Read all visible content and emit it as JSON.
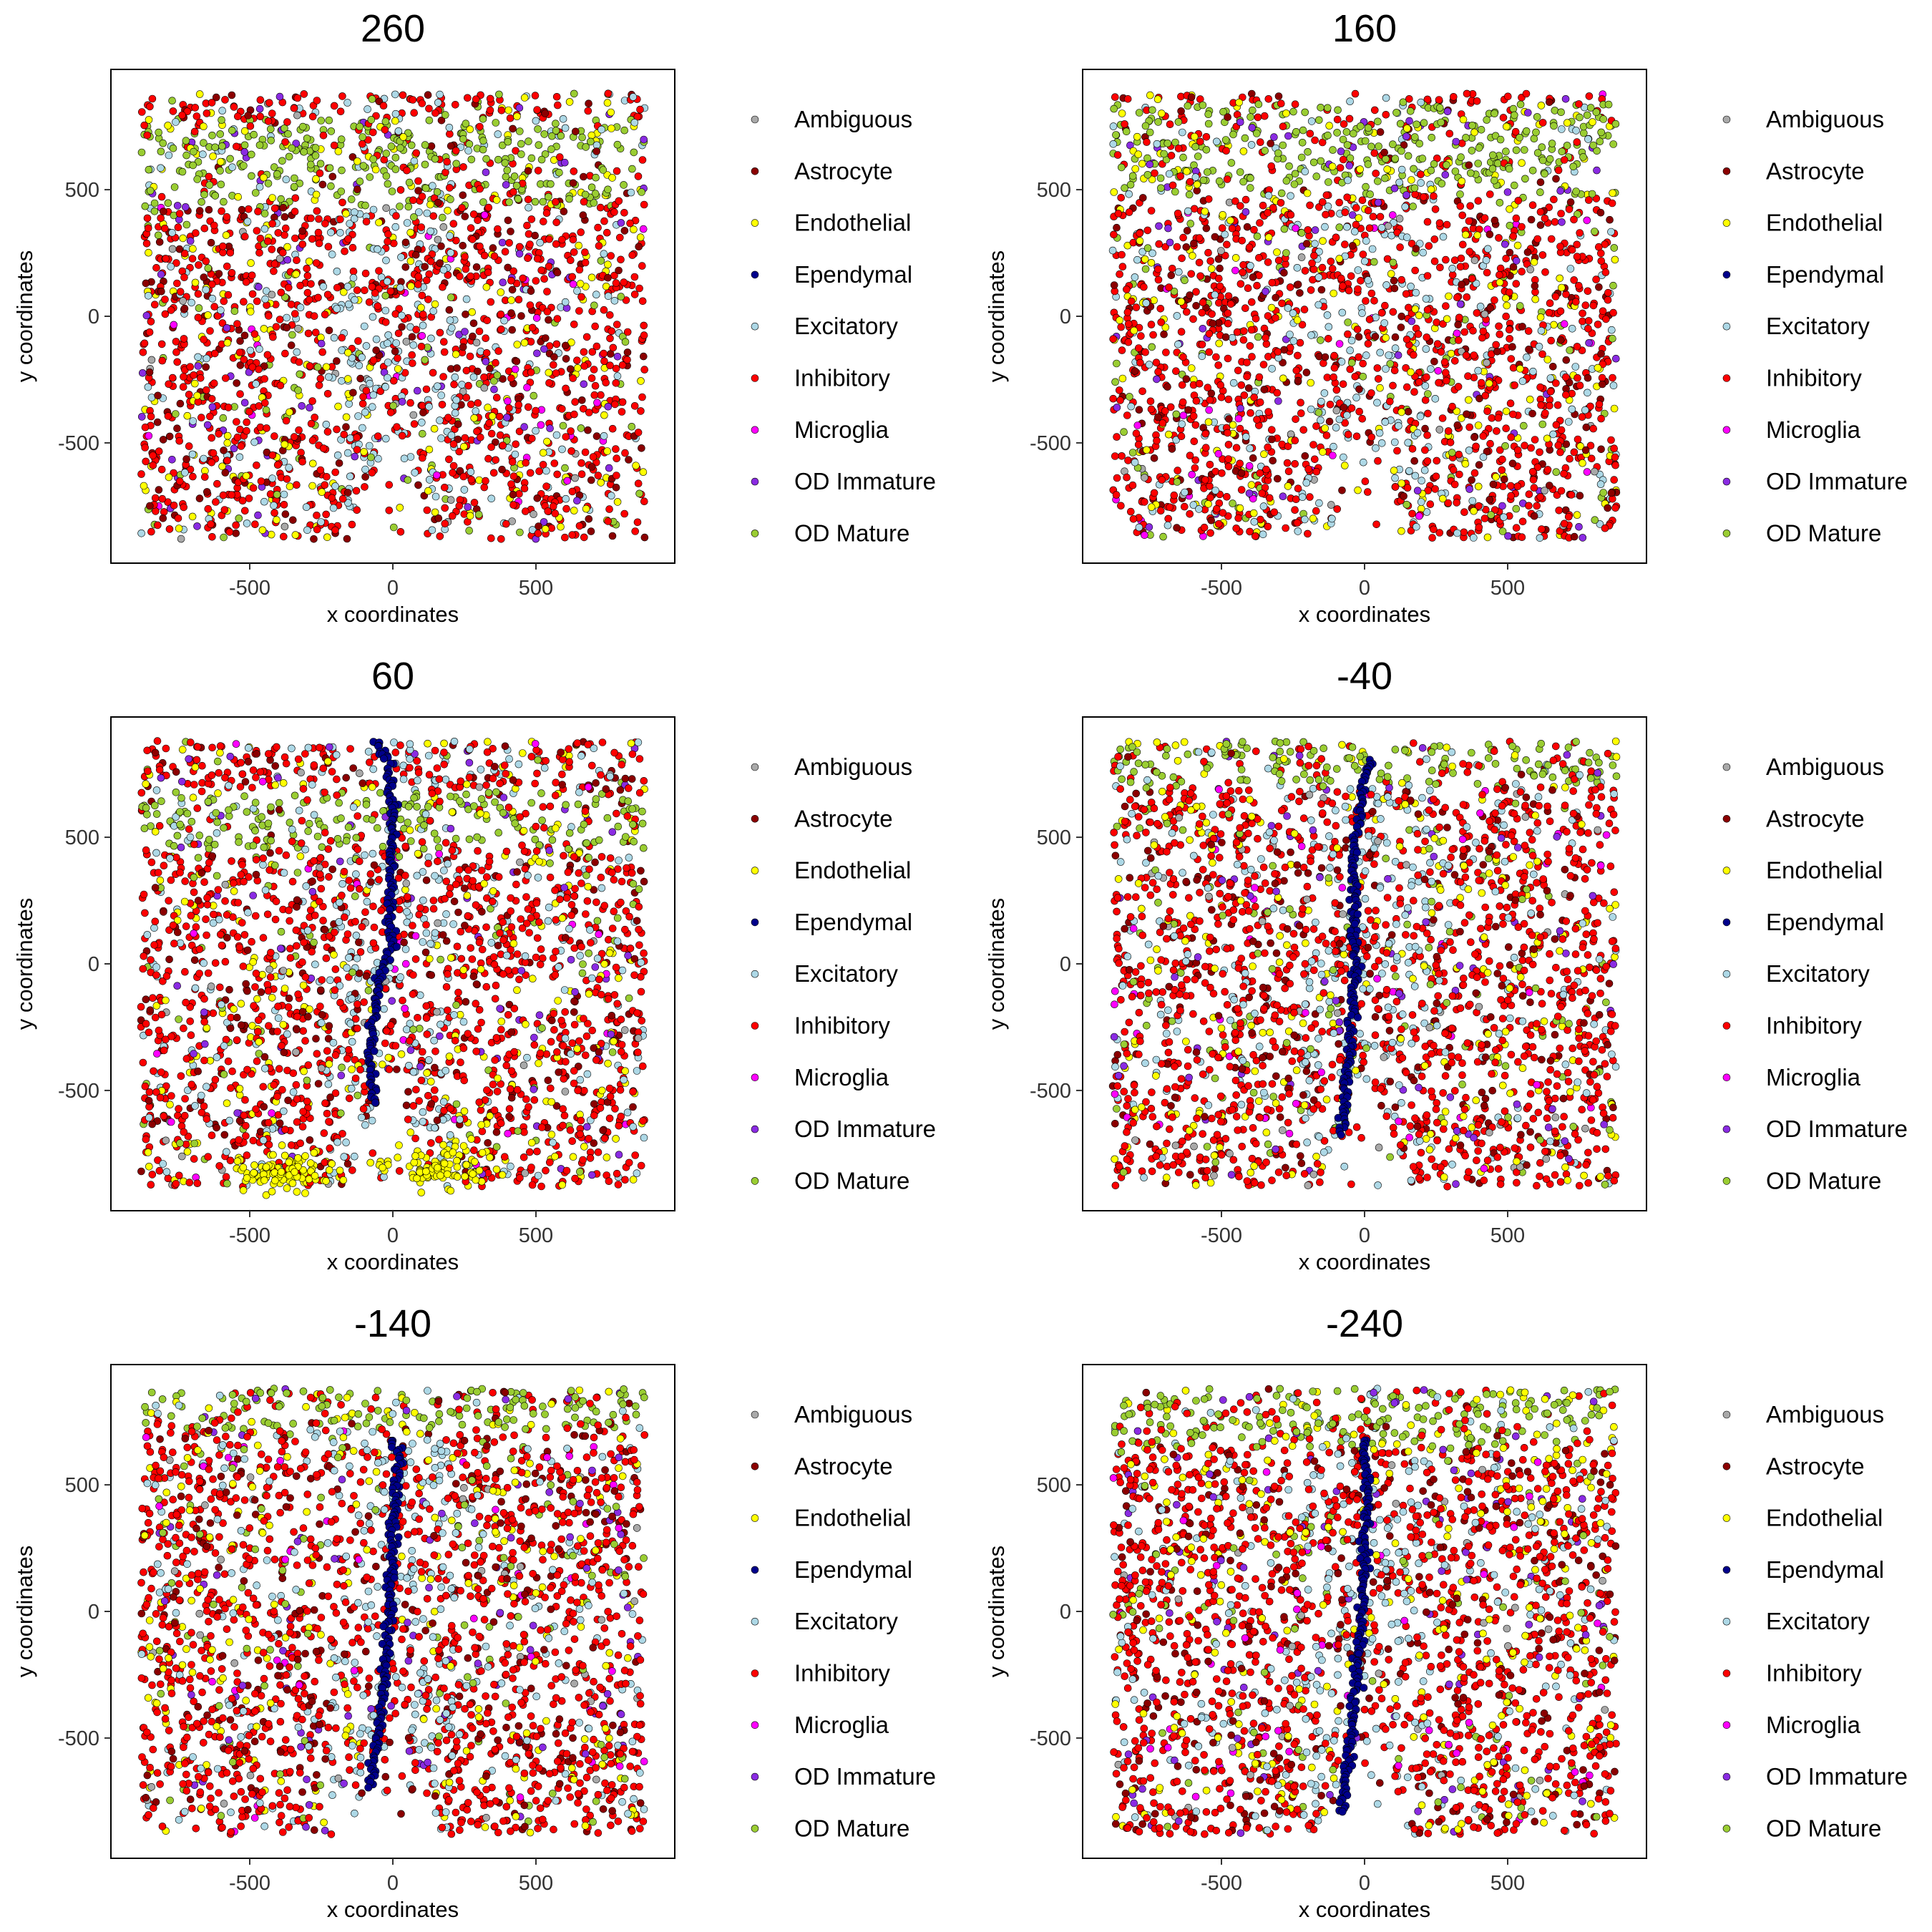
{
  "chart_data": {
    "type": "scatter",
    "description_layout": "3x2 grid of spatial scatter panels",
    "xlabel": "x coordinates",
    "ylabel": "y coordinates",
    "xlim": [
      -985,
      985
    ],
    "ylim": [
      -975,
      975
    ],
    "x_ticks": [
      -500,
      0,
      500
    ],
    "x_tick_labels": [
      "-500",
      "0",
      "500"
    ],
    "y_ticks": [
      -500,
      0,
      500
    ],
    "y_tick_labels": [
      "-500",
      "0",
      "500"
    ],
    "grid": false,
    "legend_placement": "right",
    "categories": [
      {
        "name": "Ambiguous",
        "color": "#A9A9A9"
      },
      {
        "name": "Astrocyte",
        "color": "#8B0000"
      },
      {
        "name": "Endothelial",
        "color": "#FFFF00"
      },
      {
        "name": "Ependymal",
        "color": "#00008B"
      },
      {
        "name": "Excitatory",
        "color": "#ADD8E6"
      },
      {
        "name": "Inhibitory",
        "color": "#FF0000"
      },
      {
        "name": "Microglia",
        "color": "#FF00FF"
      },
      {
        "name": "OD Immature",
        "color": "#8A2BE2"
      },
      {
        "name": "OD Mature",
        "color": "#9ACD32"
      }
    ],
    "panels": [
      {
        "title": "260",
        "ependymal": [],
        "green_band": [
          430,
          780
        ],
        "lower_endo_patch": false
      },
      {
        "title": "160",
        "ependymal": [],
        "green_band": [
          480,
          840
        ],
        "lower_endo_patch": false
      },
      {
        "title": "60",
        "ependymal": [
          [
            -60,
            880
          ],
          [
            -20,
            820
          ],
          [
            0,
            600
          ],
          [
            -10,
            80
          ],
          [
            -50,
            -80
          ],
          [
            -80,
            -380
          ],
          [
            -60,
            -560
          ]
        ],
        "green_band": [
          450,
          680
        ],
        "lower_endo_patch": true
      },
      {
        "title": "-40",
        "ependymal": [
          [
            30,
            800
          ],
          [
            0,
            750
          ],
          [
            -40,
            400
          ],
          [
            -30,
            0
          ],
          [
            -60,
            -400
          ],
          [
            -80,
            -680
          ]
        ],
        "green_band": [
          700,
          880
        ],
        "lower_endo_patch": false
      },
      {
        "title": "-140",
        "ependymal": [
          [
            0,
            680
          ],
          [
            20,
            600
          ],
          [
            0,
            300
          ],
          [
            -10,
            0
          ],
          [
            -40,
            -400
          ],
          [
            -80,
            -700
          ]
        ],
        "green_band": [
          720,
          880
        ],
        "lower_endo_patch": false
      },
      {
        "title": "-240",
        "ependymal": [
          [
            0,
            680
          ],
          [
            10,
            500
          ],
          [
            0,
            200
          ],
          [
            -20,
            -200
          ],
          [
            -50,
            -500
          ],
          [
            -80,
            -800
          ]
        ],
        "green_band": [
          650,
          880
        ],
        "lower_endo_patch": false
      }
    ]
  }
}
